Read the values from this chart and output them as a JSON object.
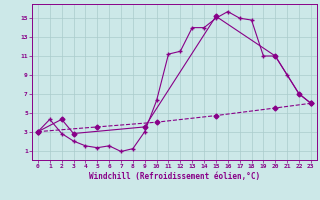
{
  "bg_color": "#cce8e8",
  "line_color": "#880088",
  "grid_color": "#aacccc",
  "xlabel": "Windchill (Refroidissement éolien,°C)",
  "xlim": [
    -0.5,
    23.5
  ],
  "ylim": [
    0,
    16.5
  ],
  "xticks": [
    0,
    1,
    2,
    3,
    4,
    5,
    6,
    7,
    8,
    9,
    10,
    11,
    12,
    13,
    14,
    15,
    16,
    17,
    18,
    19,
    20,
    21,
    22,
    23
  ],
  "yticks": [
    1,
    3,
    5,
    7,
    9,
    11,
    13,
    15
  ],
  "series1_x": [
    0,
    1,
    2,
    3,
    4,
    5,
    6,
    7,
    8,
    9,
    10,
    11,
    12,
    13,
    14,
    15,
    16,
    17,
    18,
    19,
    20,
    21,
    22,
    23
  ],
  "series1_y": [
    3.0,
    4.3,
    2.8,
    2.0,
    1.5,
    1.3,
    1.5,
    0.9,
    1.2,
    3.0,
    6.3,
    11.2,
    11.5,
    14.0,
    14.0,
    15.0,
    15.7,
    15.0,
    14.8,
    11.0,
    11.0,
    9.0,
    7.0,
    6.0
  ],
  "series2_x": [
    0,
    2,
    3,
    9,
    15,
    20,
    22,
    23
  ],
  "series2_y": [
    3.0,
    4.3,
    2.8,
    3.5,
    15.2,
    11.0,
    7.0,
    6.0
  ],
  "series3_x": [
    0,
    5,
    10,
    15,
    20,
    23
  ],
  "series3_y": [
    3.0,
    3.5,
    4.0,
    4.7,
    5.5,
    6.0
  ]
}
